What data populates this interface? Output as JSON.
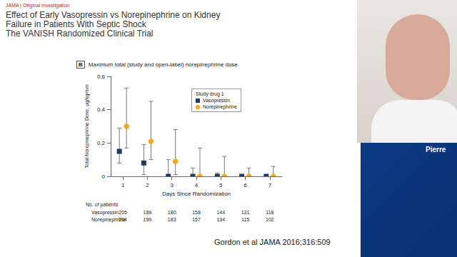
{
  "header": {
    "journal": "JAMA | Original Investigation",
    "title": [
      "Effect of Early Vasopressin vs Norepinephrine on Kidney",
      "Failure in Patients With Septic Shock"
    ],
    "subtitle": "The VANISH Randomized Clinical Trial"
  },
  "chart_data": {
    "type": "scatter",
    "panel": "B",
    "title": "Maximum total (study and open-label) norepinephrine dose",
    "x_label": "Days Since Randomization",
    "y_label": "Total Norepinephrine Dose, μg/kg/min",
    "categories": [
      "1",
      "2",
      "3",
      "4",
      "5",
      "6",
      "7"
    ],
    "series": [
      {
        "name": "Vasopressin",
        "color": "#1f3a5c",
        "marker": "square",
        "values": [
          0.15,
          0.08,
          0,
          0,
          0,
          0,
          0
        ],
        "lower": [
          0.08,
          0.01,
          0,
          0,
          0,
          0,
          0
        ],
        "upper": [
          0.29,
          0.19,
          0.1,
          0.05,
          0.02,
          0.01,
          0.01
        ]
      },
      {
        "name": "Norepinephrine",
        "color": "#f5a623",
        "marker": "circle",
        "values": [
          0.3,
          0.21,
          0.09,
          0,
          0,
          0,
          0
        ],
        "lower": [
          0.17,
          0.1,
          0.01,
          0,
          0,
          0,
          0
        ],
        "upper": [
          0.53,
          0.45,
          0.28,
          0.17,
          0.12,
          0.05,
          0.06
        ]
      }
    ],
    "ylim": [
      0,
      0.6
    ],
    "yticks": [
      0,
      0.2,
      0.4,
      0.6
    ],
    "grid": false,
    "legend": "upper right",
    "legend_title": "Study drug 1"
  },
  "patients_table": {
    "title": "No. of patients",
    "rows": [
      {
        "label": "Vasopressin",
        "values": [
          205,
          189,
          180,
          158,
          144,
          131,
          118
        ]
      },
      {
        "label": "Norepinephrine",
        "values": [
          204,
          199,
          183,
          157,
          134,
          115,
          102
        ]
      }
    ]
  },
  "citation": "Gordon et al JAMA 2016;316:509",
  "speaker": "Pierre"
}
